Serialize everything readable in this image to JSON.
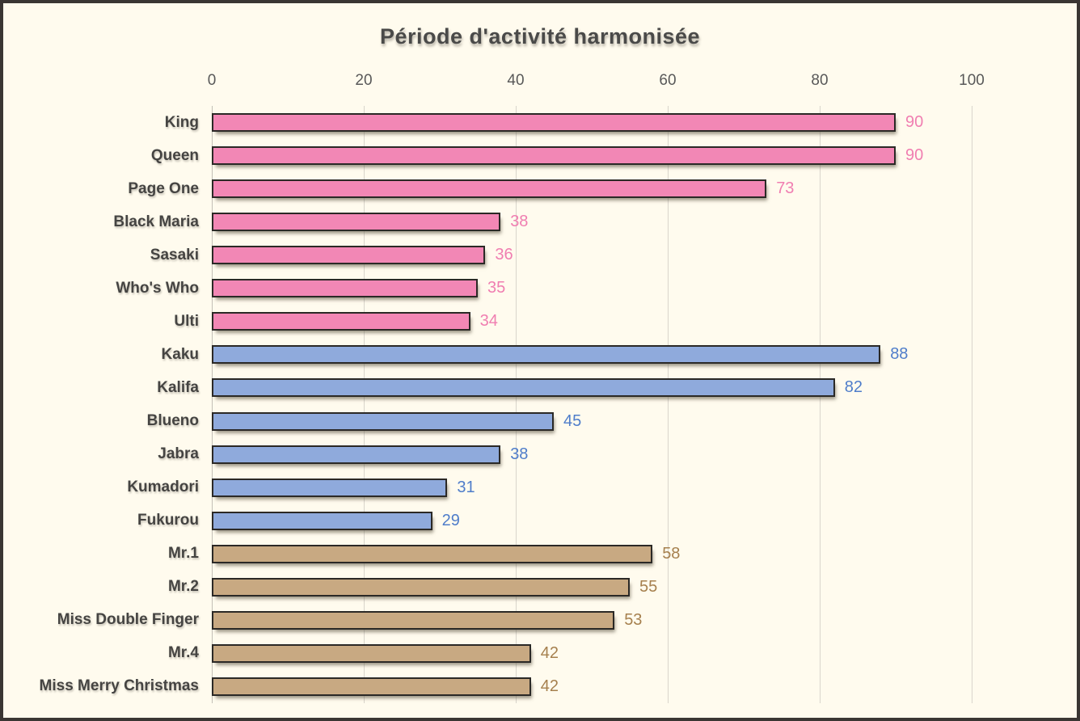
{
  "chart_data": {
    "type": "bar",
    "orientation": "horizontal",
    "title": "Période d'activité harmonisée",
    "xlabel": "",
    "ylabel": "",
    "xlim": [
      0,
      100
    ],
    "ticks": [
      0,
      20,
      40,
      60,
      80,
      100
    ],
    "grid": true,
    "legend": "none",
    "bars": [
      {
        "label": "King",
        "value": 90,
        "group": "pink"
      },
      {
        "label": "Queen",
        "value": 90,
        "group": "pink"
      },
      {
        "label": "Page One",
        "value": 73,
        "group": "pink"
      },
      {
        "label": "Black Maria",
        "value": 38,
        "group": "pink"
      },
      {
        "label": "Sasaki",
        "value": 36,
        "group": "pink"
      },
      {
        "label": "Who's Who",
        "value": 35,
        "group": "pink"
      },
      {
        "label": "Ulti",
        "value": 34,
        "group": "pink"
      },
      {
        "label": "Kaku",
        "value": 88,
        "group": "blue"
      },
      {
        "label": "Kalifa",
        "value": 82,
        "group": "blue"
      },
      {
        "label": "Blueno",
        "value": 45,
        "group": "blue"
      },
      {
        "label": "Jabra",
        "value": 38,
        "group": "blue"
      },
      {
        "label": "Kumadori",
        "value": 31,
        "group": "blue"
      },
      {
        "label": "Fukurou",
        "value": 29,
        "group": "blue"
      },
      {
        "label": "Mr.1",
        "value": 58,
        "group": "tan"
      },
      {
        "label": "Mr.2",
        "value": 55,
        "group": "tan"
      },
      {
        "label": "Miss Double Finger",
        "value": 53,
        "group": "tan"
      },
      {
        "label": "Mr.4",
        "value": 42,
        "group": "tan"
      },
      {
        "label": "Miss Merry Christmas",
        "value": 42,
        "group": "tan"
      }
    ]
  },
  "style": {
    "background": "#FFFBEE",
    "frame_border": "#3A3633",
    "gridline": "#D9D5CC",
    "axis_line": "#C2BFB6",
    "title_color": "#4A4A49",
    "tick_color": "#595959",
    "category_color": "#454442",
    "bar_border": "#2B2926",
    "groups": {
      "pink": {
        "fill": "#F287B5",
        "value_color": "#F07EB1"
      },
      "blue": {
        "fill": "#8FAADC",
        "value_color": "#4F7DCA"
      },
      "tan": {
        "fill": "#C8A982",
        "value_color": "#A6804E"
      }
    }
  }
}
